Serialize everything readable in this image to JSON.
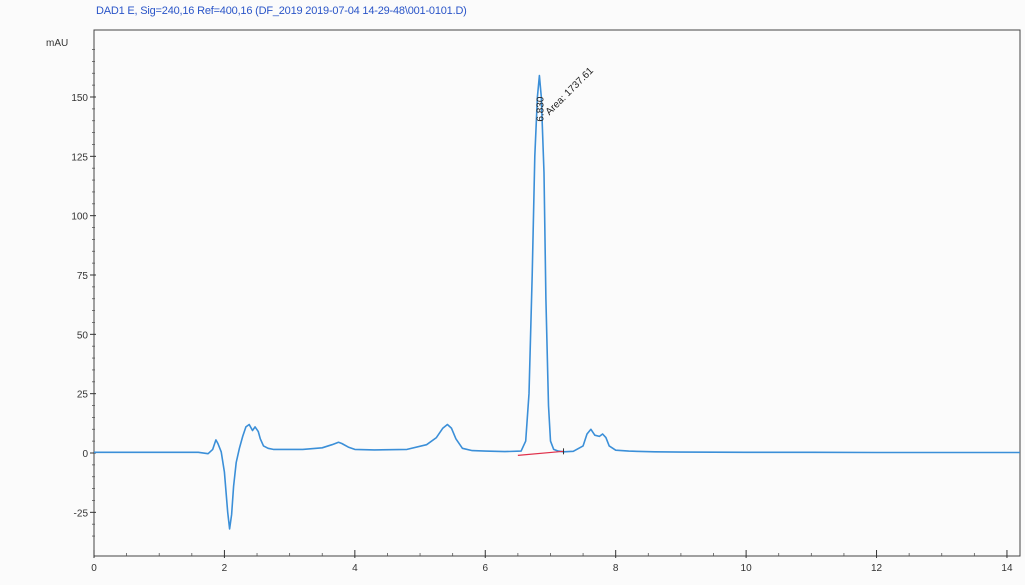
{
  "chart_data": {
    "type": "line",
    "title": "DAD1 E, Sig=240,16 Ref=400,16 (DF_2019 2019-07-04 14-29-48\\001-0101.D)",
    "ylabel": "mAU",
    "xlabel": "",
    "xlim": [
      0,
      14.2
    ],
    "ylim": [
      -36,
      175
    ],
    "x_ticks": [
      0,
      2,
      4,
      6,
      8,
      10,
      12,
      14
    ],
    "y_ticks": [
      -25,
      0,
      25,
      50,
      75,
      100,
      125,
      150
    ],
    "grid": false,
    "line_color": "#3b8fd8",
    "baseline_color": "#e0304a",
    "series": [
      {
        "x": [
          0,
          1.6,
          1.75,
          1.82,
          1.87,
          1.9,
          1.95,
          2.0,
          2.05,
          2.08,
          2.11,
          2.14,
          2.18,
          2.23,
          2.28,
          2.33,
          2.38,
          2.43,
          2.47,
          2.52,
          2.55,
          2.6,
          2.67,
          2.75,
          2.85,
          3.0,
          3.2,
          3.5,
          3.65,
          3.75,
          3.8,
          3.9,
          4.0,
          4.3,
          4.8,
          5.1,
          5.25,
          5.35,
          5.42,
          5.48,
          5.55,
          5.65,
          5.8,
          6.0,
          6.3,
          6.55,
          6.62,
          6.67,
          6.72,
          6.76,
          6.8,
          6.83,
          6.86,
          6.9,
          6.93,
          6.97,
          7.0,
          7.05,
          7.12,
          7.2,
          7.35,
          7.5,
          7.56,
          7.62,
          7.68,
          7.75,
          7.8,
          7.85,
          7.9,
          8.0,
          8.2,
          8.6,
          9.0,
          10.0,
          11.0,
          12.0,
          13.0,
          14.2
        ],
        "values": [
          0.3,
          0.3,
          -0.3,
          1.5,
          5.5,
          4.0,
          0.5,
          -8,
          -25,
          -32,
          -26,
          -14,
          -4,
          2,
          7,
          11,
          12,
          9.5,
          11,
          9,
          6,
          3,
          2,
          1.5,
          1.5,
          1.5,
          1.5,
          2.2,
          3.5,
          4.5,
          4.0,
          2.5,
          1.5,
          1.3,
          1.5,
          3.5,
          6.5,
          10.5,
          12,
          10.5,
          6,
          2,
          1,
          0.8,
          0.6,
          0.8,
          5,
          25,
          75,
          125,
          150,
          159,
          150,
          118,
          65,
          20,
          5,
          1.5,
          0.8,
          0.5,
          0.7,
          3,
          8,
          10,
          7.5,
          7,
          8,
          6.5,
          3,
          1.2,
          0.8,
          0.5,
          0.4,
          0.3,
          0.3,
          0.2,
          0.2,
          0.2
        ]
      }
    ],
    "peak_annotation": {
      "retention_time_label": "6.830",
      "area_label": "Area: 1737.61",
      "x": 6.83,
      "y": 159
    },
    "integration_baseline": {
      "x": [
        6.5,
        7.2
      ],
      "y": [
        -1.0,
        0.7
      ]
    }
  }
}
